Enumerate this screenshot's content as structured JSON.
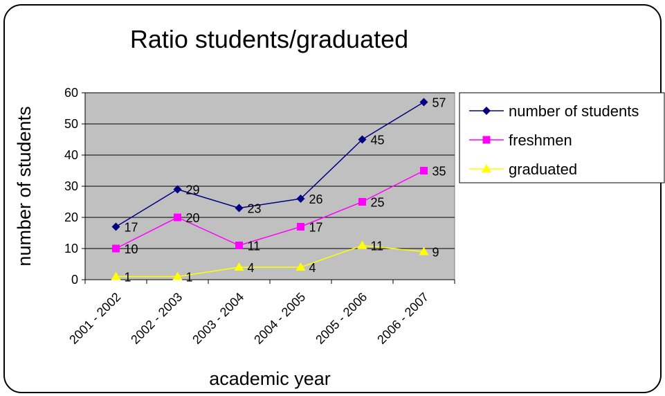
{
  "chart_data": {
    "type": "line",
    "title": "Ratio students/graduated",
    "xlabel": "academic year",
    "ylabel": "number of students",
    "categories": [
      "2001 - 2002",
      "2002 - 2003",
      "2003 - 2004",
      "2004 - 2005",
      "2005 - 2006",
      "2006 - 2007"
    ],
    "ylim": [
      0,
      60
    ],
    "yticks": [
      0,
      10,
      20,
      30,
      40,
      50,
      60
    ],
    "grid": true,
    "plot_background": "#c0c0c0",
    "legend_position": "right",
    "series": [
      {
        "name": "number of students",
        "values": [
          17,
          29,
          23,
          26,
          45,
          57
        ],
        "color": "#000080",
        "marker": "diamond"
      },
      {
        "name": "freshmen",
        "values": [
          10,
          20,
          11,
          17,
          25,
          35
        ],
        "color": "#ff00ff",
        "marker": "square"
      },
      {
        "name": "graduated",
        "values": [
          1,
          1,
          4,
          4,
          11,
          9
        ],
        "color": "#ffff00",
        "marker": "triangle"
      }
    ]
  }
}
